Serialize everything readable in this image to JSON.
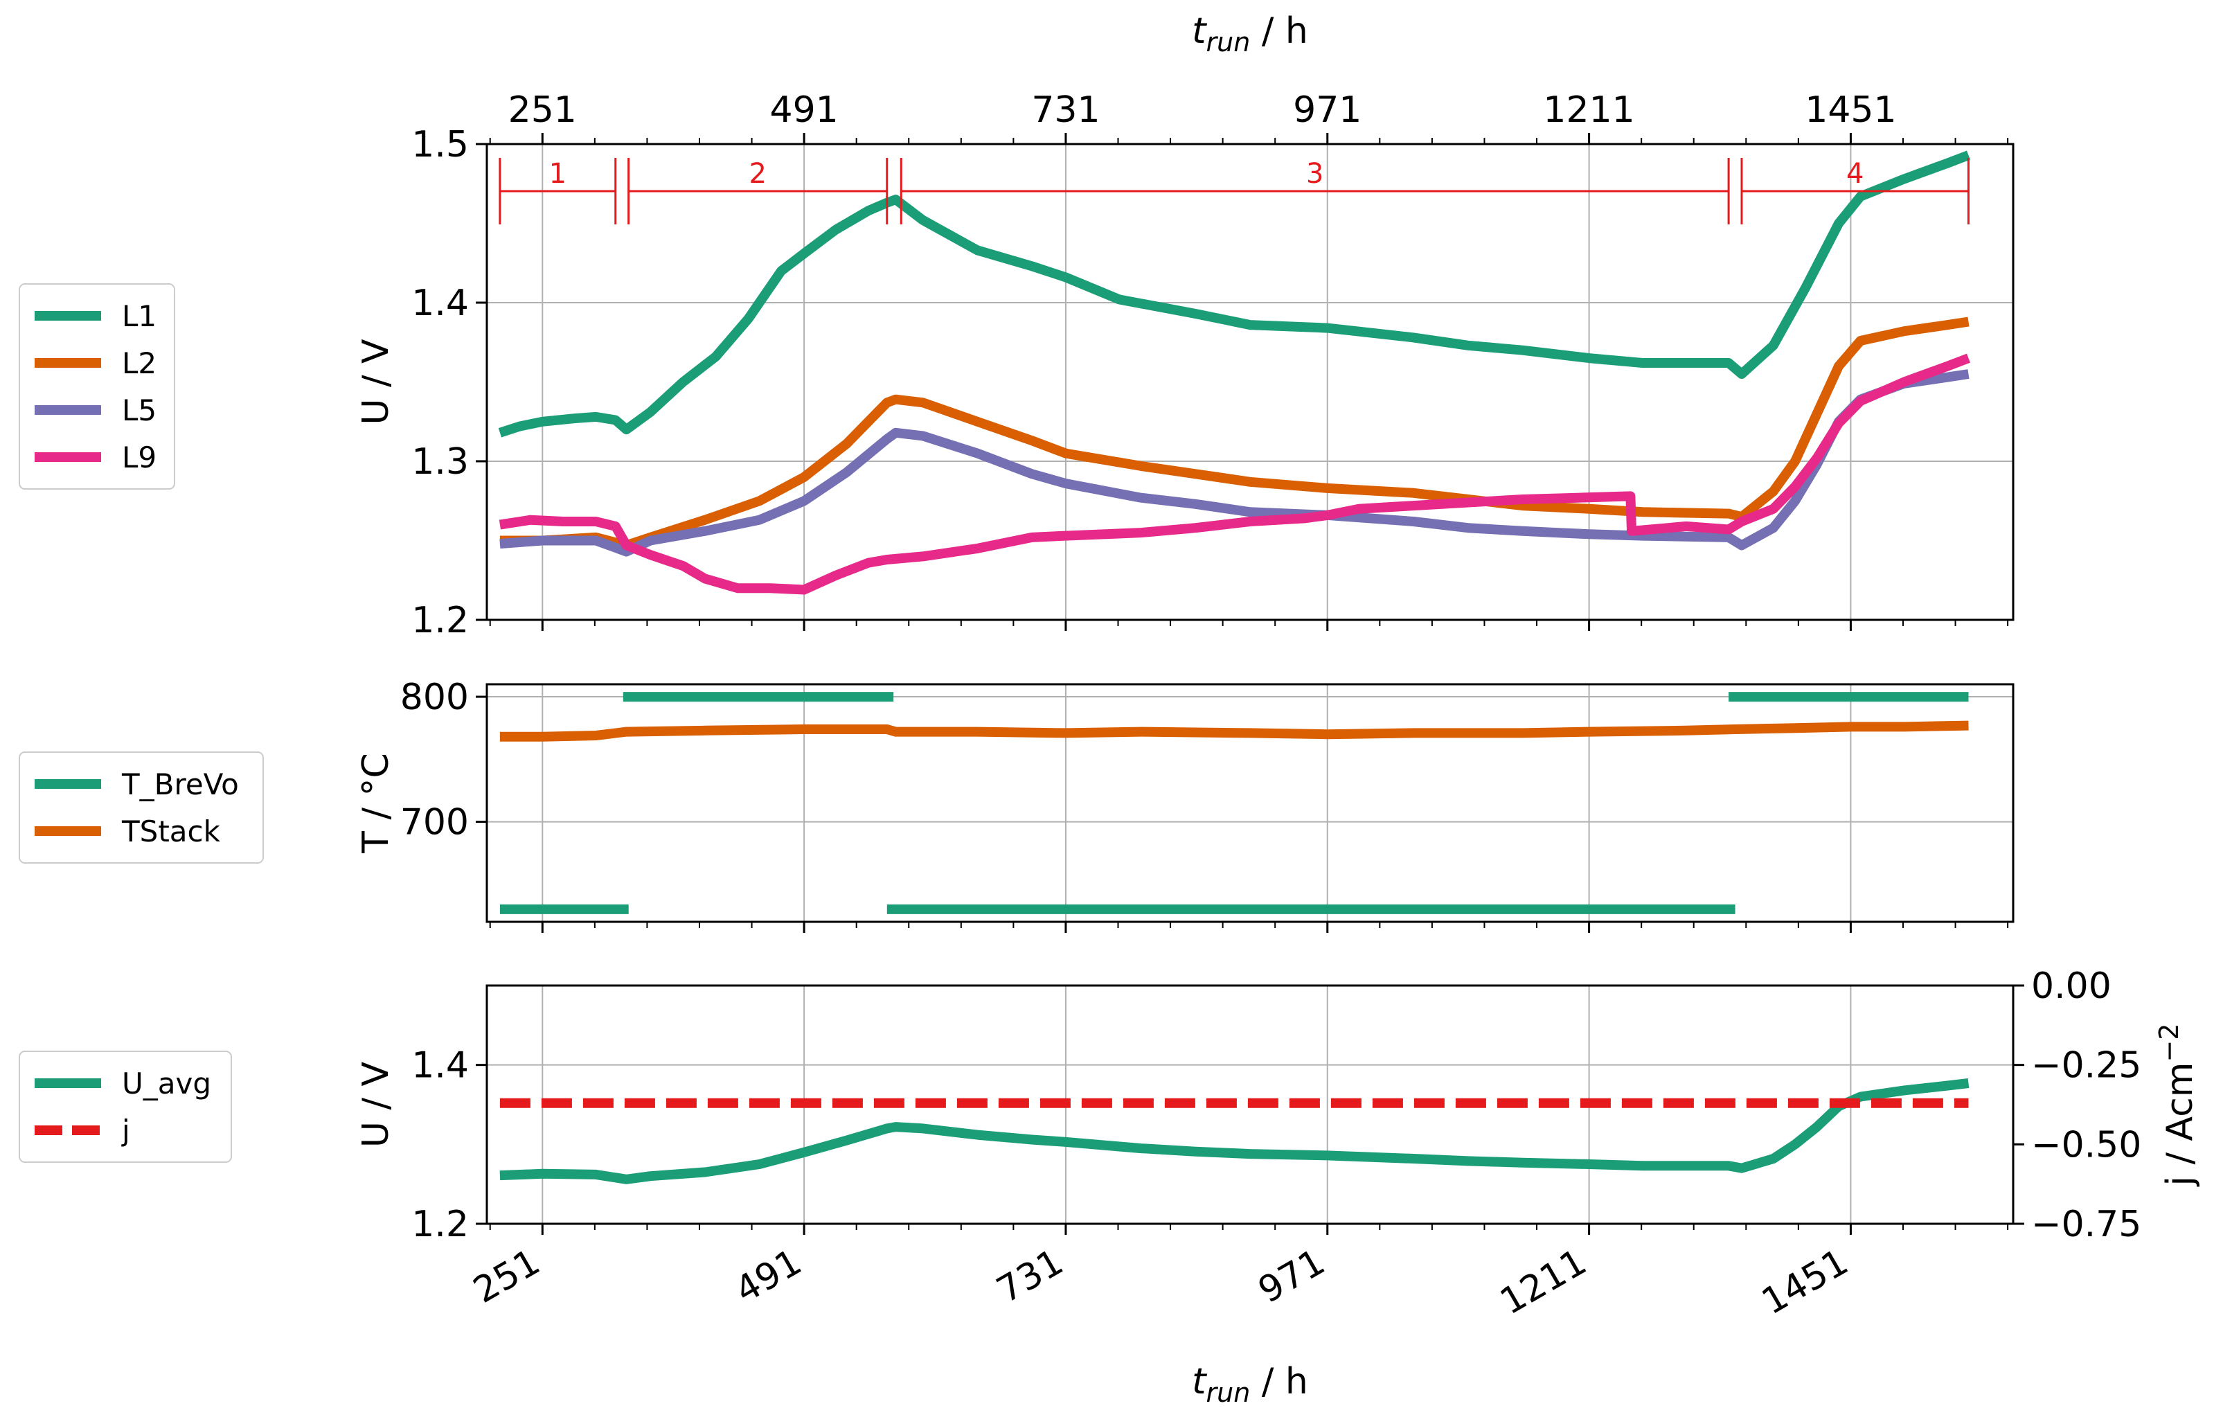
{
  "chart_data": [
    {
      "type": "line",
      "panel": "voltage-cells",
      "ylabel": "U / V",
      "ylim": [
        1.2,
        1.5
      ],
      "yticks": [
        "1.2",
        "1.3",
        "1.4",
        "1.5"
      ],
      "x2label_main": "t",
      "x2label_sub": "run",
      "x2label_unit": " / h",
      "xlim": [
        200,
        1600
      ],
      "xticks": [
        251,
        491,
        731,
        971,
        1211,
        1451
      ],
      "grid": true,
      "phases": [
        {
          "label": "1",
          "start": 212,
          "end": 318
        },
        {
          "label": "2",
          "start": 330,
          "end": 567
        },
        {
          "label": "3",
          "start": 580,
          "end": 1339
        },
        {
          "label": "4",
          "start": 1351,
          "end": 1559
        }
      ],
      "legend": {
        "position": "left",
        "entries": [
          "L1",
          "L2",
          "L5",
          "L9"
        ]
      },
      "series": [
        {
          "name": "L1",
          "color": "#1b9e77",
          "x": [
            212,
            230,
            251,
            280,
            300,
            318,
            328,
            350,
            380,
            410,
            440,
            470,
            491,
            520,
            550,
            567,
            575,
            600,
            650,
            700,
            731,
            780,
            850,
            900,
            971,
            1050,
            1100,
            1150,
            1211,
            1260,
            1339,
            1351,
            1380,
            1410,
            1440,
            1460,
            1500,
            1540,
            1559
          ],
          "y": [
            1.318,
            1.322,
            1.325,
            1.327,
            1.328,
            1.326,
            1.32,
            1.331,
            1.35,
            1.366,
            1.39,
            1.42,
            1.431,
            1.446,
            1.458,
            1.463,
            1.465,
            1.452,
            1.433,
            1.423,
            1.416,
            1.402,
            1.393,
            1.386,
            1.384,
            1.378,
            1.373,
            1.37,
            1.365,
            1.362,
            1.362,
            1.355,
            1.373,
            1.41,
            1.45,
            1.467,
            1.478,
            1.488,
            1.493
          ]
        },
        {
          "name": "L2",
          "color": "#d95f02",
          "x": [
            212,
            251,
            300,
            328,
            350,
            400,
            450,
            491,
            530,
            567,
            575,
            600,
            650,
            700,
            731,
            800,
            850,
            900,
            971,
            1050,
            1100,
            1150,
            1211,
            1260,
            1339,
            1351,
            1380,
            1400,
            1420,
            1440,
            1460,
            1500,
            1540,
            1559
          ],
          "y": [
            1.25,
            1.25,
            1.252,
            1.247,
            1.252,
            1.263,
            1.275,
            1.29,
            1.311,
            1.337,
            1.339,
            1.337,
            1.325,
            1.313,
            1.305,
            1.297,
            1.292,
            1.287,
            1.283,
            1.28,
            1.276,
            1.272,
            1.27,
            1.268,
            1.267,
            1.265,
            1.281,
            1.3,
            1.33,
            1.36,
            1.376,
            1.382,
            1.386,
            1.388
          ]
        },
        {
          "name": "L5",
          "color": "#7570b3",
          "x": [
            212,
            251,
            300,
            328,
            350,
            400,
            450,
            491,
            530,
            567,
            575,
            600,
            650,
            700,
            731,
            800,
            850,
            900,
            971,
            1050,
            1100,
            1150,
            1211,
            1260,
            1339,
            1351,
            1380,
            1400,
            1420,
            1440,
            1460,
            1500,
            1540,
            1559
          ],
          "y": [
            1.248,
            1.25,
            1.25,
            1.243,
            1.25,
            1.256,
            1.263,
            1.275,
            1.293,
            1.314,
            1.318,
            1.316,
            1.305,
            1.292,
            1.286,
            1.277,
            1.273,
            1.268,
            1.266,
            1.262,
            1.258,
            1.256,
            1.254,
            1.253,
            1.252,
            1.247,
            1.258,
            1.275,
            1.298,
            1.325,
            1.339,
            1.349,
            1.353,
            1.355
          ]
        },
        {
          "name": "L9",
          "color": "#e7298a",
          "x": [
            212,
            240,
            270,
            300,
            318,
            328,
            350,
            380,
            400,
            430,
            460,
            491,
            520,
            550,
            567,
            600,
            650,
            700,
            731,
            800,
            850,
            900,
            950,
            971,
            1000,
            1050,
            1100,
            1150,
            1200,
            1249,
            1250,
            1300,
            1339,
            1351,
            1380,
            1400,
            1420,
            1440,
            1460,
            1500,
            1540,
            1559
          ],
          "y": [
            1.26,
            1.263,
            1.262,
            1.262,
            1.259,
            1.247,
            1.241,
            1.234,
            1.226,
            1.22,
            1.22,
            1.219,
            1.228,
            1.236,
            1.238,
            1.24,
            1.245,
            1.252,
            1.253,
            1.255,
            1.258,
            1.262,
            1.264,
            1.266,
            1.27,
            1.272,
            1.274,
            1.276,
            1.277,
            1.278,
            1.256,
            1.259,
            1.257,
            1.262,
            1.27,
            1.284,
            1.302,
            1.324,
            1.338,
            1.35,
            1.36,
            1.365
          ]
        }
      ]
    },
    {
      "type": "line",
      "panel": "temperature",
      "ylabel": "T / °C",
      "ylim": [
        620,
        810
      ],
      "yticks": [
        "700",
        "800"
      ],
      "xlim": [
        200,
        1600
      ],
      "grid": true,
      "legend": {
        "position": "left",
        "entries": [
          "T_BreVo",
          "TStack"
        ]
      },
      "series": [
        {
          "name": "T_BreVo",
          "color": "#1b9e77",
          "segments": [
            {
              "x": [
                212,
                330
              ],
              "y": [
                630,
                630
              ]
            },
            {
              "x": [
                325,
                573
              ],
              "y": [
                800,
                800
              ]
            },
            {
              "x": [
                567,
                1345
              ],
              "y": [
                630,
                630
              ]
            },
            {
              "x": [
                1339,
                1559
              ],
              "y": [
                800,
                800
              ]
            }
          ]
        },
        {
          "name": "TStack",
          "color": "#d95f02",
          "x": [
            212,
            251,
            300,
            328,
            400,
            491,
            567,
            575,
            650,
            731,
            800,
            900,
            971,
            1050,
            1150,
            1211,
            1300,
            1345,
            1400,
            1451,
            1500,
            1559
          ],
          "y": [
            768,
            768,
            769,
            772,
            773,
            774,
            774,
            772,
            772,
            771,
            772,
            771,
            770,
            771,
            771,
            772,
            773,
            774,
            775,
            776,
            776,
            777
          ]
        }
      ]
    },
    {
      "type": "line",
      "panel": "average-voltage-current",
      "ylabel": "U / V",
      "ylim": [
        1.2,
        1.5
      ],
      "yticks": [
        "1.2",
        "1.4"
      ],
      "y2label_main": "j / Acm",
      "y2label_sup": "−2",
      "y2lim": [
        -0.75,
        0.0
      ],
      "y2ticks": [
        "−0.75",
        "−0.50",
        "−0.25",
        "0.00"
      ],
      "xlabel_main": "t",
      "xlabel_sub": "run",
      "xlabel_unit": " / h",
      "xlim": [
        200,
        1600
      ],
      "xticks": [
        251,
        491,
        731,
        971,
        1211,
        1451
      ],
      "grid": true,
      "legend": {
        "position": "left",
        "entries": [
          "U_avg",
          "j"
        ]
      },
      "series": [
        {
          "name": "U_avg",
          "color": "#1b9e77",
          "axis": "left",
          "x": [
            212,
            251,
            300,
            328,
            350,
            400,
            450,
            491,
            530,
            567,
            575,
            600,
            650,
            700,
            731,
            800,
            850,
            900,
            971,
            1050,
            1100,
            1150,
            1211,
            1260,
            1339,
            1351,
            1380,
            1400,
            1420,
            1440,
            1460,
            1500,
            1540,
            1559
          ],
          "y": [
            1.261,
            1.263,
            1.262,
            1.256,
            1.26,
            1.265,
            1.275,
            1.29,
            1.305,
            1.32,
            1.322,
            1.32,
            1.312,
            1.306,
            1.303,
            1.295,
            1.291,
            1.288,
            1.286,
            1.282,
            1.279,
            1.277,
            1.275,
            1.273,
            1.273,
            1.27,
            1.282,
            1.3,
            1.322,
            1.348,
            1.36,
            1.368,
            1.374,
            1.377
          ]
        },
        {
          "name": "j",
          "color": "#e41a1c",
          "axis": "right",
          "dashed": true,
          "x": [
            212,
            1559
          ],
          "y": [
            -0.37,
            -0.37
          ]
        }
      ]
    }
  ]
}
